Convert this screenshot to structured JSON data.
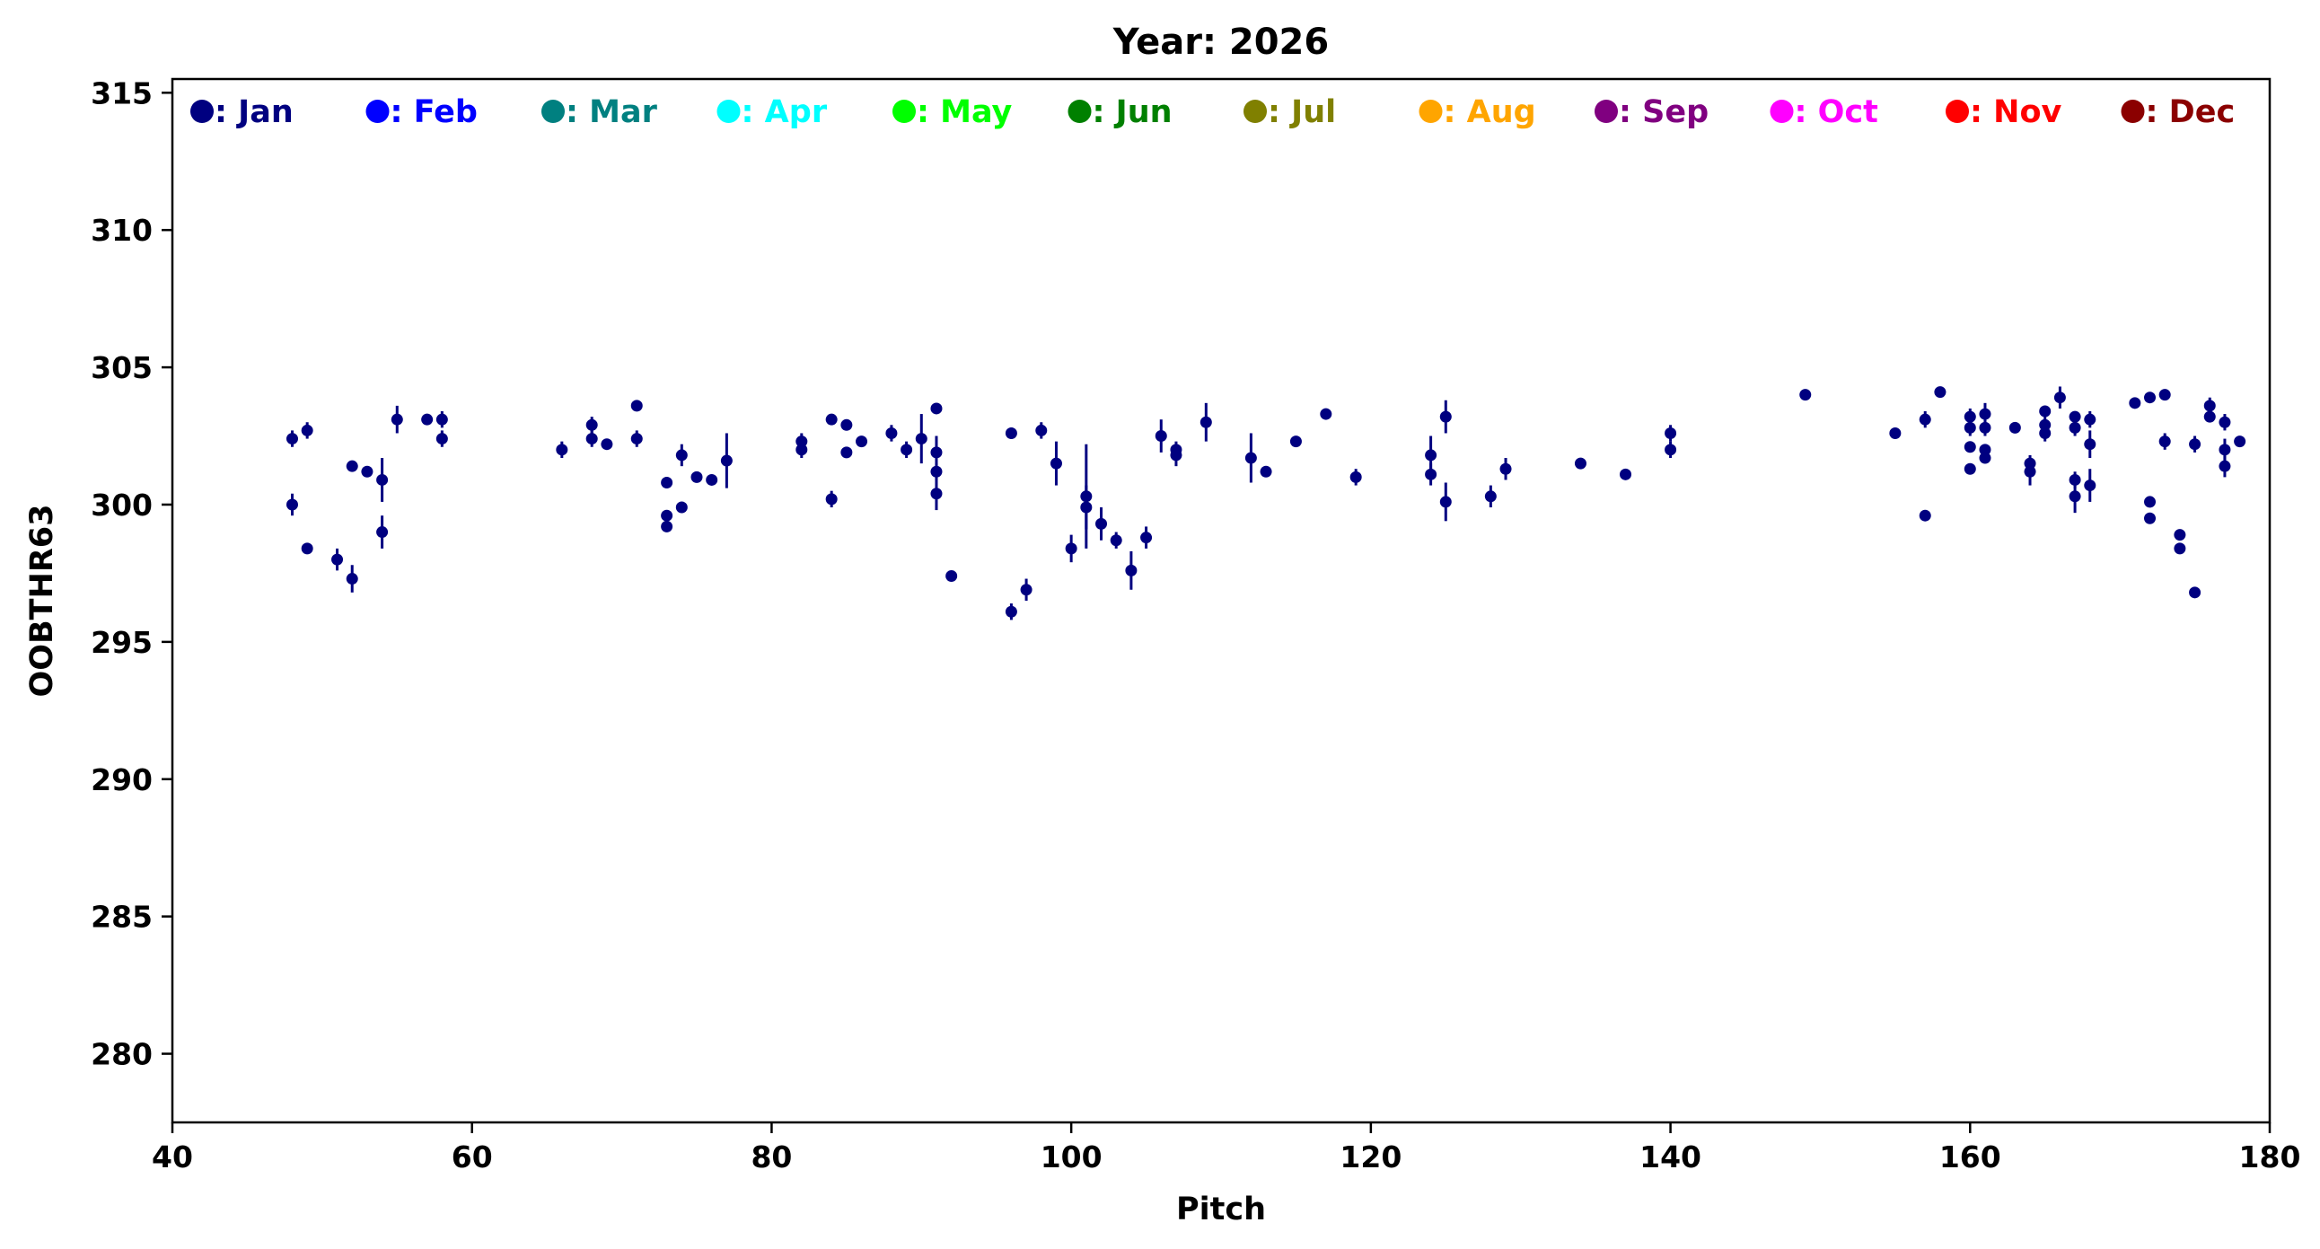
{
  "chart_data": {
    "type": "scatter",
    "title": "Year: 2026",
    "xlabel": "Pitch",
    "ylabel": "OOBTHR63",
    "xlim": [
      40,
      180
    ],
    "ylim": [
      277.5,
      315.5
    ],
    "xticks": [
      "40",
      "60",
      "80",
      "100",
      "120",
      "140",
      "160",
      "180"
    ],
    "yticks": [
      "280",
      "285",
      "290",
      "295",
      "300",
      "305",
      "310",
      "315"
    ],
    "grid": false,
    "legend_placement": "top",
    "legend": [
      {
        "label": ": Jan",
        "color": "#000080"
      },
      {
        "label": ": Feb",
        "color": "#0000ff"
      },
      {
        "label": ": Mar",
        "color": "#008080"
      },
      {
        "label": ": Apr",
        "color": "#00ffff"
      },
      {
        "label": ": May",
        "color": "#00ff00"
      },
      {
        "label": ": Jun",
        "color": "#008000"
      },
      {
        "label": ": Jul",
        "color": "#808000"
      },
      {
        "label": ": Aug",
        "color": "#ffa500"
      },
      {
        "label": ": Sep",
        "color": "#800080"
      },
      {
        "label": ": Oct",
        "color": "#ff00ff"
      },
      {
        "label": ": Nov",
        "color": "#ff0000"
      },
      {
        "label": ": Dec",
        "color": "#8b0000"
      }
    ],
    "series": [
      {
        "color": "#000080",
        "points": [
          [
            48,
            302.4,
            0.3
          ],
          [
            48,
            300.0,
            0.4
          ],
          [
            49,
            302.7,
            0.3
          ],
          [
            49,
            298.4,
            0.1
          ],
          [
            51,
            298.0,
            0.4
          ],
          [
            52,
            301.4,
            0.1
          ],
          [
            52,
            297.3,
            0.5
          ],
          [
            53,
            301.2,
            0.1
          ],
          [
            54,
            300.9,
            0.8
          ],
          [
            54,
            299.0,
            0.6
          ],
          [
            55,
            303.1,
            0.5
          ],
          [
            57,
            303.1,
            0.2
          ],
          [
            58,
            303.1,
            0.3
          ],
          [
            58,
            302.4,
            0.3
          ],
          [
            66,
            302.0,
            0.3
          ],
          [
            68,
            302.9,
            0.3
          ],
          [
            68,
            302.4,
            0.3
          ],
          [
            69,
            302.2,
            0.2
          ],
          [
            71,
            303.6,
            0.1
          ],
          [
            71,
            302.4,
            0.3
          ],
          [
            73,
            300.8,
            0.2
          ],
          [
            73,
            299.6,
            0.2
          ],
          [
            73,
            299.2,
            0.2
          ],
          [
            74,
            301.8,
            0.4
          ],
          [
            74,
            299.9,
            0.2
          ],
          [
            75,
            301.0,
            0.2
          ],
          [
            76,
            300.9,
            0.1
          ],
          [
            77,
            301.6,
            1.0
          ],
          [
            82,
            302.3,
            0.3
          ],
          [
            82,
            302.0,
            0.3
          ],
          [
            84,
            303.1,
            0.1
          ],
          [
            84,
            300.2,
            0.3
          ],
          [
            85,
            302.9,
            0.1
          ],
          [
            85,
            301.9,
            0.2
          ],
          [
            86,
            302.3,
            0.2
          ],
          [
            88,
            302.6,
            0.3
          ],
          [
            89,
            302.0,
            0.3
          ],
          [
            90,
            302.4,
            0.9
          ],
          [
            91,
            303.5,
            0.1
          ],
          [
            91,
            301.9,
            0.6
          ],
          [
            91,
            301.2,
            0.3
          ],
          [
            91,
            300.4,
            0.6
          ],
          [
            92,
            297.4,
            0.1
          ],
          [
            96,
            302.6,
            0.2
          ],
          [
            96,
            296.1,
            0.3
          ],
          [
            97,
            296.9,
            0.4
          ],
          [
            98,
            302.7,
            0.3
          ],
          [
            99,
            301.5,
            0.8
          ],
          [
            100,
            298.4,
            0.5
          ],
          [
            101,
            300.3,
            1.9
          ],
          [
            101,
            299.9,
            0.8
          ],
          [
            102,
            299.3,
            0.6
          ],
          [
            103,
            298.7,
            0.3
          ],
          [
            104,
            297.6,
            0.7
          ],
          [
            105,
            298.8,
            0.4
          ],
          [
            106,
            302.5,
            0.6
          ],
          [
            107,
            302.0,
            0.3
          ],
          [
            107,
            301.8,
            0.4
          ],
          [
            109,
            303.0,
            0.7
          ],
          [
            112,
            301.7,
            0.9
          ],
          [
            113,
            301.2,
            0.2
          ],
          [
            115,
            302.3,
            0.2
          ],
          [
            117,
            303.3,
            0.2
          ],
          [
            119,
            301.0,
            0.3
          ],
          [
            124,
            301.8,
            0.7
          ],
          [
            124,
            301.1,
            0.4
          ],
          [
            125,
            303.2,
            0.6
          ],
          [
            125,
            300.1,
            0.7
          ],
          [
            128,
            300.3,
            0.4
          ],
          [
            129,
            301.3,
            0.4
          ],
          [
            134,
            301.5,
            0.1
          ],
          [
            137,
            301.1,
            0.2
          ],
          [
            140,
            302.6,
            0.3
          ],
          [
            140,
            302.0,
            0.3
          ],
          [
            149,
            304.0,
            0.1
          ],
          [
            155,
            302.6,
            0.1
          ],
          [
            157,
            303.1,
            0.3
          ],
          [
            157,
            299.6,
            0.1
          ],
          [
            158,
            304.1,
            0.1
          ],
          [
            160,
            303.2,
            0.3
          ],
          [
            160,
            302.8,
            0.3
          ],
          [
            160,
            302.1,
            0.2
          ],
          [
            160,
            301.3,
            0.2
          ],
          [
            161,
            303.3,
            0.4
          ],
          [
            161,
            302.8,
            0.3
          ],
          [
            161,
            302.0,
            0.2
          ],
          [
            161,
            301.7,
            0.2
          ],
          [
            163,
            302.8,
            0.2
          ],
          [
            164,
            301.5,
            0.3
          ],
          [
            164,
            301.2,
            0.5
          ],
          [
            165,
            303.4,
            0.2
          ],
          [
            165,
            302.9,
            0.4
          ],
          [
            165,
            302.6,
            0.3
          ],
          [
            166,
            303.9,
            0.4
          ],
          [
            167,
            303.2,
            0.2
          ],
          [
            167,
            302.8,
            0.3
          ],
          [
            167,
            300.9,
            0.3
          ],
          [
            167,
            300.3,
            0.6
          ],
          [
            168,
            303.1,
            0.3
          ],
          [
            168,
            302.2,
            0.5
          ],
          [
            168,
            300.7,
            0.6
          ],
          [
            171,
            303.7,
            0.2
          ],
          [
            172,
            303.9,
            0.1
          ],
          [
            172,
            300.1,
            0.2
          ],
          [
            172,
            299.5,
            0.2
          ],
          [
            173,
            304.0,
            0.1
          ],
          [
            173,
            302.3,
            0.3
          ],
          [
            174,
            298.9,
            0.1
          ],
          [
            174,
            298.4,
            0.2
          ],
          [
            175,
            302.2,
            0.3
          ],
          [
            175,
            296.8,
            0.1
          ],
          [
            176,
            303.6,
            0.3
          ],
          [
            176,
            303.2,
            0.2
          ],
          [
            177,
            303.0,
            0.3
          ],
          [
            177,
            302.0,
            0.4
          ],
          [
            177,
            301.4,
            0.4
          ],
          [
            178,
            302.3,
            0.2
          ]
        ]
      }
    ]
  }
}
